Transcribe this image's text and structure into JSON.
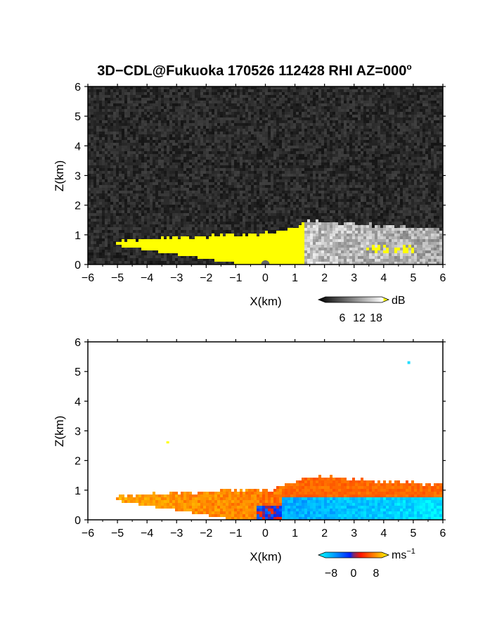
{
  "figure": {
    "title": "3D−CDL@Fukuoka 170526 112428 RHI AZ=000",
    "title_degree": "o"
  },
  "chart_data": [
    {
      "type": "heatmap",
      "panel": "SNR",
      "xlabel": "X(km)",
      "ylabel": "Z(km)",
      "xlim": [
        -6,
        6
      ],
      "ylim": [
        0,
        6
      ],
      "xticks": [
        "−6",
        "−5",
        "−4",
        "−3",
        "−2",
        "−1",
        "0",
        "1",
        "2",
        "3",
        "4",
        "5",
        "6"
      ],
      "yticks": [
        "0",
        "1",
        "2",
        "3",
        "4",
        "5",
        "6"
      ],
      "colorbar": {
        "unit": "dB",
        "ticks": [
          "6",
          "12",
          "18"
        ],
        "range": [
          0,
          20
        ]
      },
      "background": "noise, dark gray",
      "features": [
        {
          "name": "strong return (>18 dB, yellow)",
          "x_range": [
            -5.0,
            1.4
          ],
          "z_range": [
            0,
            1.6
          ]
        },
        {
          "name": "moderate return (gray)",
          "x_range": [
            1.0,
            6.0
          ],
          "z_range": [
            0,
            1.5
          ]
        },
        {
          "name": "isolated strong echoes",
          "x_range": [
            3.3,
            5.0
          ],
          "z_range": [
            0.5,
            0.8
          ]
        },
        {
          "name": "radar site",
          "x": 0.0,
          "z": 0.0
        }
      ]
    },
    {
      "type": "heatmap",
      "panel": "Doppler velocity",
      "xlabel": "X(km)",
      "ylabel": "Z(km)",
      "xlim": [
        -6,
        6
      ],
      "ylim": [
        0,
        6
      ],
      "xticks": [
        "−6",
        "−5",
        "−4",
        "−3",
        "−2",
        "−1",
        "0",
        "1",
        "2",
        "3",
        "4",
        "5",
        "6"
      ],
      "yticks": [
        "0",
        "1",
        "2",
        "3",
        "4",
        "5",
        "6"
      ],
      "colorbar": {
        "unit": "ms",
        "unit_exp": "−1",
        "ticks": [
          "−8",
          "0",
          "8"
        ],
        "range": [
          -10,
          10
        ]
      },
      "features": [
        {
          "name": "positive (orange/yellow)",
          "x_range": [
            -5.0,
            -0.3
          ],
          "z_range": [
            0,
            0.9
          ],
          "velocity": 6
        },
        {
          "name": "positive aloft (red/orange)",
          "x_range": [
            0.5,
            6.0
          ],
          "z_range": [
            0.7,
            1.5
          ],
          "velocity": 4
        },
        {
          "name": "negative near surface (blue/cyan)",
          "x_range": [
            0.0,
            6.0
          ],
          "z_range": [
            0,
            0.8
          ],
          "velocity": -6
        },
        {
          "name": "isolated pixel",
          "x": -3.3,
          "z": 2.6
        },
        {
          "name": "isolated pixel",
          "x": 4.85,
          "z": 5.3
        }
      ]
    }
  ],
  "colors": {
    "snr_strong": "#ffff00",
    "vel_pos": "#ff4400",
    "vel_neg": "#1d6fff",
    "vel_neg_light": "#22ccff"
  }
}
